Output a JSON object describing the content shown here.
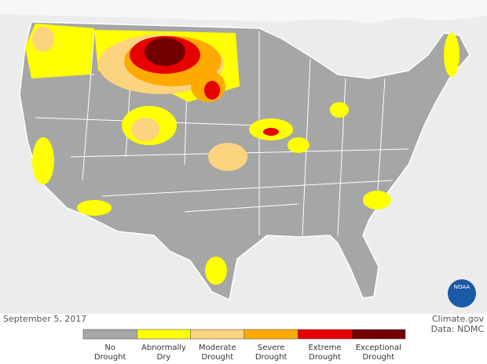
{
  "map": {
    "date": "September 5, 2017",
    "credit": "Climate.gov",
    "source": "Data: NDMC",
    "logo": "NOAA"
  },
  "legend": {
    "items": [
      {
        "label_lines": [
          "No",
          "Drought"
        ],
        "color": "#a6a6a6"
      },
      {
        "label_lines": [
          "Abnormally",
          "Dry"
        ],
        "color": "#ffff00"
      },
      {
        "label_lines": [
          "Moderate",
          "Drought"
        ],
        "color": "#fcd37f"
      },
      {
        "label_lines": [
          "Severe",
          "Drought"
        ],
        "color": "#ffaa00"
      },
      {
        "label_lines": [
          "Extreme",
          "Drought"
        ],
        "color": "#e60000"
      },
      {
        "label_lines": [
          "Exceptional",
          "Drought"
        ],
        "color": "#730000"
      }
    ]
  }
}
